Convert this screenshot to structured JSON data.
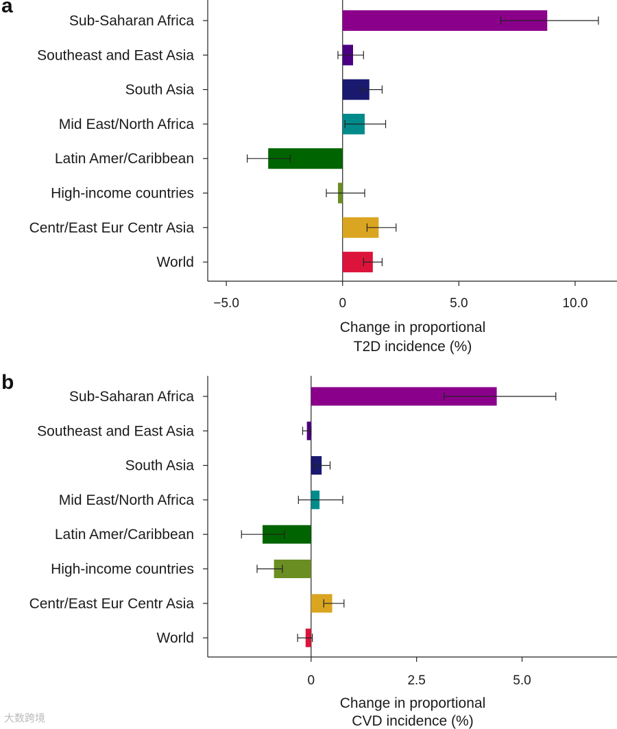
{
  "chart_data": [
    {
      "type": "bar",
      "orientation": "horizontal",
      "panel": "a",
      "categories": [
        "Sub-Saharan Africa",
        "Southeast and East Asia",
        "South Asia",
        "Mid East/North Africa",
        "Latin Amer/Caribbean",
        "High-income countries",
        "Centr/East Eur Centr Asia",
        "World"
      ],
      "values": [
        8.8,
        0.45,
        1.15,
        0.95,
        -3.2,
        -0.2,
        1.55,
        1.3
      ],
      "error_low": [
        6.8,
        -0.2,
        0.8,
        0.1,
        -4.1,
        -0.7,
        1.05,
        0.9
      ],
      "error_high": [
        11.0,
        0.9,
        1.7,
        1.85,
        -2.25,
        0.95,
        2.3,
        1.7
      ],
      "colors": [
        "#8b008b",
        "#4b0082",
        "#191970",
        "#008b8b",
        "#006400",
        "#6b8e23",
        "#daa520",
        "#dc143c"
      ],
      "xlim": [
        -5.8,
        11.8
      ],
      "xticks": [
        -5.0,
        0,
        5.0,
        10.0
      ],
      "xtick_labels": [
        "−5.0",
        "0",
        "5.0",
        "10.0"
      ],
      "xlabel_line1": "Change in proportional",
      "xlabel_line2": "T2D incidence (%)"
    },
    {
      "type": "bar",
      "orientation": "horizontal",
      "panel": "b",
      "categories": [
        "Sub-Saharan Africa",
        "Southeast and East Asia",
        "South Asia",
        "Mid East/North Africa",
        "Latin Amer/Caribbean",
        "High-income countries",
        "Centr/East Eur Centr Asia",
        "World"
      ],
      "values": [
        4.4,
        -0.1,
        0.25,
        0.2,
        -1.15,
        -0.88,
        0.5,
        -0.13
      ],
      "error_low": [
        3.15,
        -0.2,
        0.08,
        -0.3,
        -1.65,
        -1.28,
        0.3,
        -0.32
      ],
      "error_high": [
        5.8,
        0.0,
        0.45,
        0.75,
        -0.63,
        -0.68,
        0.78,
        0.03
      ],
      "colors": [
        "#8b008b",
        "#4b0082",
        "#191970",
        "#008b8b",
        "#006400",
        "#6b8e23",
        "#daa520",
        "#dc143c"
      ],
      "xlim": [
        -2.45,
        7.25
      ],
      "xticks": [
        0,
        2.5,
        5.0
      ],
      "xtick_labels": [
        "0",
        "2.5",
        "5.0"
      ],
      "xlabel_line1": "Change in proportional",
      "xlabel_line2": "CVD incidence (%)"
    }
  ],
  "watermark": "大数跨境"
}
